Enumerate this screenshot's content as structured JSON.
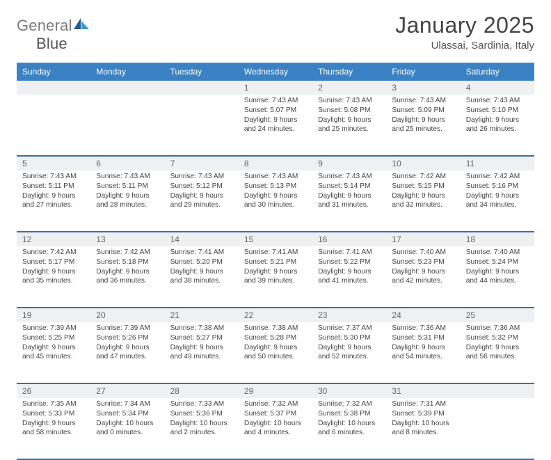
{
  "logo": {
    "word1": "General",
    "word2": "Blue"
  },
  "header": {
    "title": "January 2025",
    "location": "Ulassai, Sardinia, Italy"
  },
  "colors": {
    "header_bg": "#3b82c4",
    "header_fg": "#ffffff",
    "daynum_bg": "#eef0f2",
    "row_divider": "#3b6fa3",
    "text": "#444444",
    "logo_gray": "#7a7a7a",
    "logo_blue_dark": "#1f5d8a",
    "logo_blue_light": "#3f95d1"
  },
  "days": [
    "Sunday",
    "Monday",
    "Tuesday",
    "Wednesday",
    "Thursday",
    "Friday",
    "Saturday"
  ],
  "weeks": [
    [
      {
        "n": "",
        "sunrise": "",
        "sunset": "",
        "daylight": ""
      },
      {
        "n": "",
        "sunrise": "",
        "sunset": "",
        "daylight": ""
      },
      {
        "n": "",
        "sunrise": "",
        "sunset": "",
        "daylight": ""
      },
      {
        "n": "1",
        "sunrise": "7:43 AM",
        "sunset": "5:07 PM",
        "daylight": "9 hours and 24 minutes."
      },
      {
        "n": "2",
        "sunrise": "7:43 AM",
        "sunset": "5:08 PM",
        "daylight": "9 hours and 25 minutes."
      },
      {
        "n": "3",
        "sunrise": "7:43 AM",
        "sunset": "5:09 PM",
        "daylight": "9 hours and 25 minutes."
      },
      {
        "n": "4",
        "sunrise": "7:43 AM",
        "sunset": "5:10 PM",
        "daylight": "9 hours and 26 minutes."
      }
    ],
    [
      {
        "n": "5",
        "sunrise": "7:43 AM",
        "sunset": "5:11 PM",
        "daylight": "9 hours and 27 minutes."
      },
      {
        "n": "6",
        "sunrise": "7:43 AM",
        "sunset": "5:11 PM",
        "daylight": "9 hours and 28 minutes."
      },
      {
        "n": "7",
        "sunrise": "7:43 AM",
        "sunset": "5:12 PM",
        "daylight": "9 hours and 29 minutes."
      },
      {
        "n": "8",
        "sunrise": "7:43 AM",
        "sunset": "5:13 PM",
        "daylight": "9 hours and 30 minutes."
      },
      {
        "n": "9",
        "sunrise": "7:43 AM",
        "sunset": "5:14 PM",
        "daylight": "9 hours and 31 minutes."
      },
      {
        "n": "10",
        "sunrise": "7:42 AM",
        "sunset": "5:15 PM",
        "daylight": "9 hours and 32 minutes."
      },
      {
        "n": "11",
        "sunrise": "7:42 AM",
        "sunset": "5:16 PM",
        "daylight": "9 hours and 34 minutes."
      }
    ],
    [
      {
        "n": "12",
        "sunrise": "7:42 AM",
        "sunset": "5:17 PM",
        "daylight": "9 hours and 35 minutes."
      },
      {
        "n": "13",
        "sunrise": "7:42 AM",
        "sunset": "5:18 PM",
        "daylight": "9 hours and 36 minutes."
      },
      {
        "n": "14",
        "sunrise": "7:41 AM",
        "sunset": "5:20 PM",
        "daylight": "9 hours and 38 minutes."
      },
      {
        "n": "15",
        "sunrise": "7:41 AM",
        "sunset": "5:21 PM",
        "daylight": "9 hours and 39 minutes."
      },
      {
        "n": "16",
        "sunrise": "7:41 AM",
        "sunset": "5:22 PM",
        "daylight": "9 hours and 41 minutes."
      },
      {
        "n": "17",
        "sunrise": "7:40 AM",
        "sunset": "5:23 PM",
        "daylight": "9 hours and 42 minutes."
      },
      {
        "n": "18",
        "sunrise": "7:40 AM",
        "sunset": "5:24 PM",
        "daylight": "9 hours and 44 minutes."
      }
    ],
    [
      {
        "n": "19",
        "sunrise": "7:39 AM",
        "sunset": "5:25 PM",
        "daylight": "9 hours and 45 minutes."
      },
      {
        "n": "20",
        "sunrise": "7:39 AM",
        "sunset": "5:26 PM",
        "daylight": "9 hours and 47 minutes."
      },
      {
        "n": "21",
        "sunrise": "7:38 AM",
        "sunset": "5:27 PM",
        "daylight": "9 hours and 49 minutes."
      },
      {
        "n": "22",
        "sunrise": "7:38 AM",
        "sunset": "5:28 PM",
        "daylight": "9 hours and 50 minutes."
      },
      {
        "n": "23",
        "sunrise": "7:37 AM",
        "sunset": "5:30 PM",
        "daylight": "9 hours and 52 minutes."
      },
      {
        "n": "24",
        "sunrise": "7:36 AM",
        "sunset": "5:31 PM",
        "daylight": "9 hours and 54 minutes."
      },
      {
        "n": "25",
        "sunrise": "7:36 AM",
        "sunset": "5:32 PM",
        "daylight": "9 hours and 56 minutes."
      }
    ],
    [
      {
        "n": "26",
        "sunrise": "7:35 AM",
        "sunset": "5:33 PM",
        "daylight": "9 hours and 58 minutes."
      },
      {
        "n": "27",
        "sunrise": "7:34 AM",
        "sunset": "5:34 PM",
        "daylight": "10 hours and 0 minutes."
      },
      {
        "n": "28",
        "sunrise": "7:33 AM",
        "sunset": "5:36 PM",
        "daylight": "10 hours and 2 minutes."
      },
      {
        "n": "29",
        "sunrise": "7:32 AM",
        "sunset": "5:37 PM",
        "daylight": "10 hours and 4 minutes."
      },
      {
        "n": "30",
        "sunrise": "7:32 AM",
        "sunset": "5:38 PM",
        "daylight": "10 hours and 6 minutes."
      },
      {
        "n": "31",
        "sunrise": "7:31 AM",
        "sunset": "5:39 PM",
        "daylight": "10 hours and 8 minutes."
      },
      {
        "n": "",
        "sunrise": "",
        "sunset": "",
        "daylight": ""
      }
    ]
  ],
  "labels": {
    "sunrise": "Sunrise:",
    "sunset": "Sunset:",
    "daylight": "Daylight:"
  }
}
